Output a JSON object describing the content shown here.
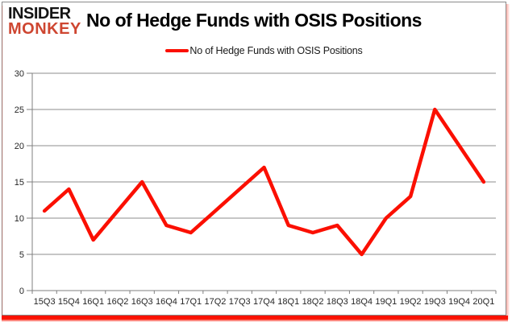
{
  "logo": {
    "line1": "INSIDER",
    "line2": "MONKEY"
  },
  "title": "No of Hedge Funds with OSIS Positions",
  "legend": {
    "label": "No of Hedge Funds with OSIS Positions"
  },
  "colors": {
    "line": "#fb0f00",
    "logo_black": "#141414",
    "logo_red": "#ce4631",
    "grid": "#8c8c8c",
    "axis": "#7f7f7f",
    "tick_text": "#262626",
    "panel_border": "#8a8a8a",
    "shadow_red": "#fb1000"
  },
  "chart_data": {
    "type": "line",
    "title": "No of Hedge Funds with OSIS Positions",
    "categories": [
      "15Q3",
      "15Q4",
      "16Q1",
      "16Q2",
      "16Q3",
      "16Q4",
      "17Q1",
      "17Q2",
      "17Q3",
      "17Q4",
      "18Q1",
      "18Q2",
      "18Q3",
      "18Q4",
      "19Q1",
      "19Q2",
      "19Q3",
      "19Q4",
      "20Q1"
    ],
    "series": [
      {
        "name": "No of Hedge Funds with OSIS Positions",
        "color": "#fb0f00",
        "values": [
          11,
          14,
          7,
          11,
          15,
          9,
          8,
          11,
          14,
          17,
          9,
          8,
          9,
          5,
          10,
          13,
          25,
          20,
          15
        ]
      }
    ],
    "xlabel": "",
    "ylabel": "",
    "ylim": [
      0,
      30
    ],
    "yticks": [
      0,
      5,
      10,
      15,
      20,
      25,
      30
    ],
    "grid": true,
    "legend_position": "top"
  }
}
